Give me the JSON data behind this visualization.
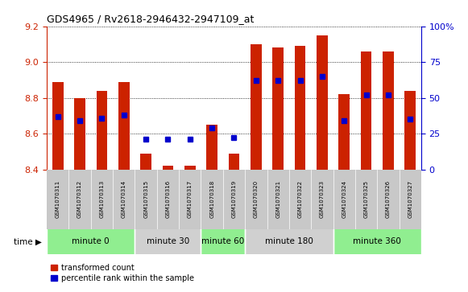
{
  "title": "GDS4965 / Rv2618-2946432-2947109_at",
  "samples": [
    "GSM1070311",
    "GSM1070312",
    "GSM1070313",
    "GSM1070314",
    "GSM1070315",
    "GSM1070316",
    "GSM1070317",
    "GSM1070318",
    "GSM1070319",
    "GSM1070320",
    "GSM1070321",
    "GSM1070322",
    "GSM1070323",
    "GSM1070324",
    "GSM1070325",
    "GSM1070326",
    "GSM1070327"
  ],
  "bar_tops": [
    8.89,
    8.8,
    8.84,
    8.89,
    8.49,
    8.42,
    8.42,
    8.65,
    8.49,
    9.1,
    9.08,
    9.09,
    9.15,
    8.82,
    9.06,
    9.06,
    8.84
  ],
  "bar_bottom": 8.4,
  "percentile_values": [
    37,
    34,
    36,
    38,
    21,
    21,
    21,
    29,
    22,
    62,
    62,
    62,
    65,
    34,
    52,
    52,
    35
  ],
  "bar_color": "#cc2200",
  "percentile_color": "#0000cc",
  "ylim_left": [
    8.4,
    9.2
  ],
  "ylim_right": [
    0,
    100
  ],
  "yticks_left": [
    8.4,
    8.6,
    8.8,
    9.0,
    9.2
  ],
  "yticks_right": [
    0,
    25,
    50,
    75,
    100
  ],
  "groups": [
    {
      "label": "minute 0",
      "start": 0,
      "end": 4
    },
    {
      "label": "minute 30",
      "start": 4,
      "end": 7
    },
    {
      "label": "minute 60",
      "start": 7,
      "end": 9
    },
    {
      "label": "minute 180",
      "start": 9,
      "end": 13
    },
    {
      "label": "minute 360",
      "start": 13,
      "end": 17
    }
  ],
  "group_colors": [
    "#90ee90",
    "#d0d0d0",
    "#90ee90",
    "#d0d0d0",
    "#90ee90"
  ],
  "sample_bg_color": "#c8c8c8",
  "time_label": "time",
  "legend_entries": [
    {
      "label": "transformed count",
      "color": "#cc2200"
    },
    {
      "label": "percentile rank within the sample",
      "color": "#0000cc"
    }
  ],
  "tick_color_left": "#cc2200",
  "tick_color_right": "#0000cc",
  "bar_width": 0.5,
  "percentile_marker_size": 5
}
